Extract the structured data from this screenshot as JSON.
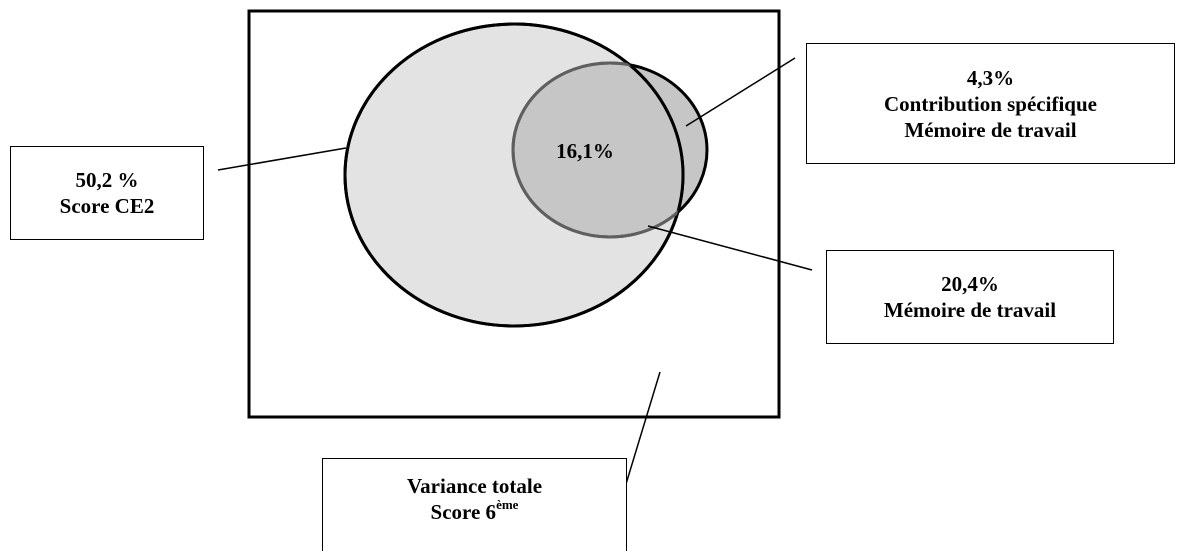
{
  "diagram": {
    "type": "venn",
    "labels": {
      "ce2_percent": "50,2 %",
      "ce2_name": "Score CE2",
      "contrib_percent": "4,3%",
      "contrib_line1": "Contribution spécifique",
      "contrib_line2": "Mémoire de travail",
      "memoire_percent": "20,4%",
      "memoire_name": "Mémoire de travail",
      "variance_line1": "Variance totale",
      "variance_line2": "Score 6",
      "variance_sup": "ème",
      "overlap": "16,1%"
    },
    "colors": {
      "outline": "#000000",
      "large_circle_fill": "#e3e3e3",
      "small_circle_fill": "#c6c6c6",
      "small_circle_stroke": "#5f5f5f",
      "background": "#ffffff"
    }
  }
}
